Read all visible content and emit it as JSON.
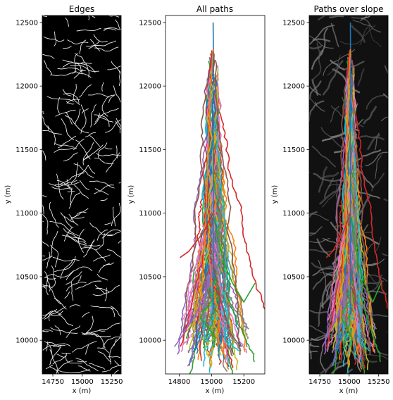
{
  "chart_data": [
    {
      "type": "image",
      "title": "Edges",
      "xlabel": "x (m)",
      "ylabel": "y (m)",
      "xlim": [
        14660,
        15330
      ],
      "ylim": [
        9735,
        12555
      ],
      "xticks": [
        14750,
        15000,
        15250
      ],
      "yticks": [
        10000,
        10500,
        11000,
        11500,
        12000,
        12500
      ],
      "background": "#000000",
      "edge_color": "#ffffff"
    },
    {
      "type": "line",
      "title": "All paths",
      "xlabel": "x (m)",
      "ylabel": "y (m)",
      "xlim": [
        14715,
        15330
      ],
      "ylim": [
        9735,
        12555
      ],
      "xticks": [
        14800,
        15000,
        15200
      ],
      "yticks": [
        10000,
        10500,
        11000,
        11500,
        12000,
        12500
      ],
      "start": [
        15010,
        12500
      ],
      "path_count": 120,
      "colors": [
        "#1f77b4",
        "#ff7f0e",
        "#2ca02c",
        "#d62728",
        "#9467bd",
        "#8c564b",
        "#e377c2",
        "#7f7f7f",
        "#bcbd22",
        "#17becf"
      ],
      "series": [
        {
          "x": [
            15010,
            15012,
            15009,
            15011,
            15010
          ],
          "y": [
            12500,
            12200,
            11800,
            11300,
            10200
          ]
        },
        {
          "x": [
            15010,
            14990,
            14975,
            14960,
            14925
          ],
          "y": [
            12290,
            11900,
            11300,
            10800,
            10150
          ]
        },
        {
          "x": [
            15010,
            15040,
            15080,
            15130,
            15200,
            15270
          ],
          "y": [
            11000,
            10800,
            10600,
            10450,
            10300,
            10450
          ]
        },
        {
          "x": [
            15010,
            14950,
            14860,
            14805
          ],
          "y": [
            11000,
            10850,
            10700,
            10650
          ]
        },
        {
          "x": [
            15010,
            14970,
            14900,
            14800,
            14770
          ],
          "y": [
            10600,
            10400,
            10200,
            10000,
            9950
          ]
        },
        {
          "x": [
            15010,
            15060,
            15120,
            15180
          ],
          "y": [
            10600,
            10300,
            10050,
            9950
          ]
        }
      ]
    },
    {
      "type": "image",
      "title": "Paths over slope",
      "xlabel": "x (m)",
      "ylabel": "y (m)",
      "xlim": [
        14660,
        15330
      ],
      "ylim": [
        9735,
        12555
      ],
      "xticks": [
        14750,
        15000,
        15250
      ],
      "yticks": [
        10000,
        10500,
        11000,
        11500,
        12000,
        12500
      ],
      "background": "#111111"
    }
  ]
}
